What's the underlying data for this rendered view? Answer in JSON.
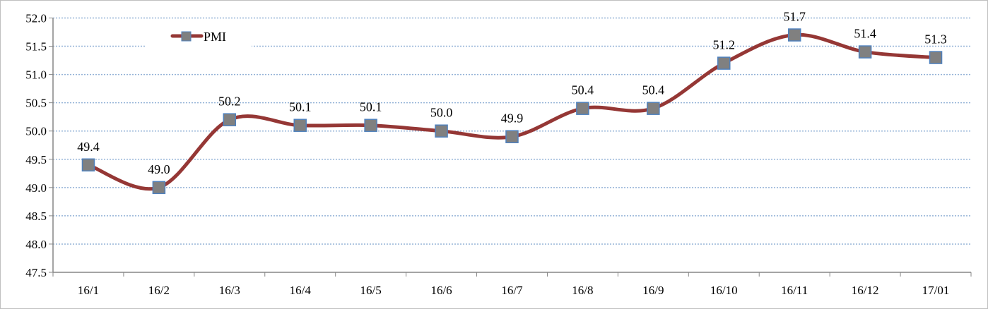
{
  "chart_data": {
    "type": "line",
    "title": "",
    "xlabel": "",
    "ylabel": "",
    "categories": [
      "16/1",
      "16/2",
      "16/3",
      "16/4",
      "16/5",
      "16/6",
      "16/7",
      "16/8",
      "16/9",
      "16/10",
      "16/11",
      "16/12",
      "17/01"
    ],
    "series": [
      {
        "name": "PMI",
        "values": [
          49.4,
          49.0,
          50.2,
          50.1,
          50.1,
          50.0,
          49.9,
          50.4,
          50.4,
          51.2,
          51.7,
          51.4,
          51.3
        ],
        "data_labels": [
          "49.4",
          "49.0",
          "50.2",
          "50.1",
          "50.1",
          "50.0",
          "49.9",
          "50.4",
          "50.4",
          "51.2",
          "51.7",
          "51.4",
          "51.3"
        ]
      }
    ],
    "ylim": [
      47.5,
      52.0
    ],
    "yticks": [
      "47.5",
      "48.0",
      "48.5",
      "49.0",
      "49.5",
      "50.0",
      "50.5",
      "51.0",
      "51.5",
      "52.0"
    ],
    "grid": true,
    "smooth": true,
    "legend": "top-left",
    "colors": {
      "line": "#953735",
      "marker_fill": "#808080",
      "marker_border": "#4f81bd",
      "grid": "#95b3d7",
      "axis": "#868686"
    }
  }
}
